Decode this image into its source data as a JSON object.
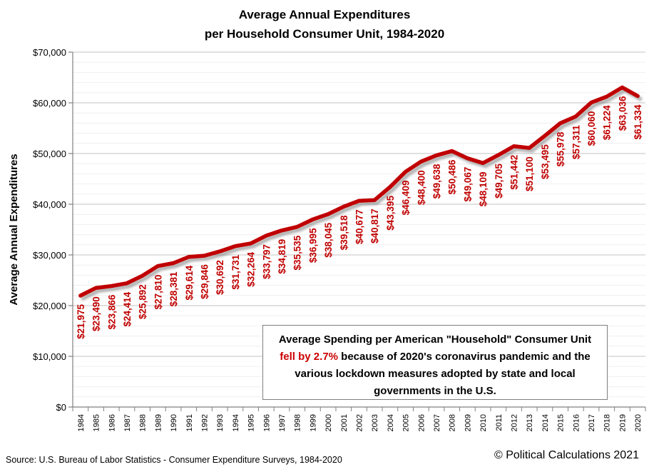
{
  "title": {
    "line1": "Average Annual Expenditures",
    "line2": "per Household Consumer Unit, 1984-2020"
  },
  "chart_data": {
    "type": "line",
    "title": "Average Annual Expenditures per Household Consumer Unit, 1984-2020",
    "x": [
      "1984",
      "1985",
      "1986",
      "1987",
      "1988",
      "1989",
      "1990",
      "1991",
      "1992",
      "1993",
      "1994",
      "1995",
      "1996",
      "1997",
      "1998",
      "1999",
      "2000",
      "2001",
      "2002",
      "2003",
      "2004",
      "2005",
      "2006",
      "2007",
      "2008",
      "2009",
      "2010",
      "2011",
      "2012",
      "2013",
      "2014",
      "2015",
      "2016",
      "2017",
      "2018",
      "2019",
      "2020"
    ],
    "series": [
      {
        "name": "Average Annual Expenditures",
        "values": [
          21975,
          23490,
          23866,
          24414,
          25892,
          27810,
          28381,
          29614,
          29846,
          30692,
          31731,
          32264,
          33797,
          34819,
          35535,
          36995,
          38045,
          39518,
          40677,
          40817,
          43395,
          46409,
          48400,
          49638,
          50486,
          49067,
          48109,
          49705,
          51442,
          51100,
          53495,
          55978,
          57311,
          60060,
          61224,
          63036,
          61334
        ]
      }
    ],
    "xlabel": "",
    "ylabel": "Average Annual Expenditures",
    "ylim": [
      0,
      70000
    ],
    "ytick_step": 10000,
    "yminor_step": 2000,
    "grid": "major and minor horizontal gridlines",
    "legend": "none",
    "data_label_prefix": "$",
    "colors": {
      "line": "#c00000",
      "data_labels": "#c00000",
      "major_grid": "#c3c3c3",
      "minor_grid": "#efefef",
      "axis": "#808080"
    }
  },
  "annotation": {
    "line1": "Average Spending per American \"Household\" Consumer Unit",
    "highlight": "fell by 2.7%",
    "line2_rest": " because of 2020's coronavirus pandemic and the",
    "line3": "various lockdown measures adopted by state and local",
    "line4": "governments in the U.S."
  },
  "footer": {
    "source": "Source: U.S. Bureau of Labor Statistics - Consumer Expenditure Surveys, 1984-2020",
    "copyright": "© Political Calculations 2021"
  }
}
